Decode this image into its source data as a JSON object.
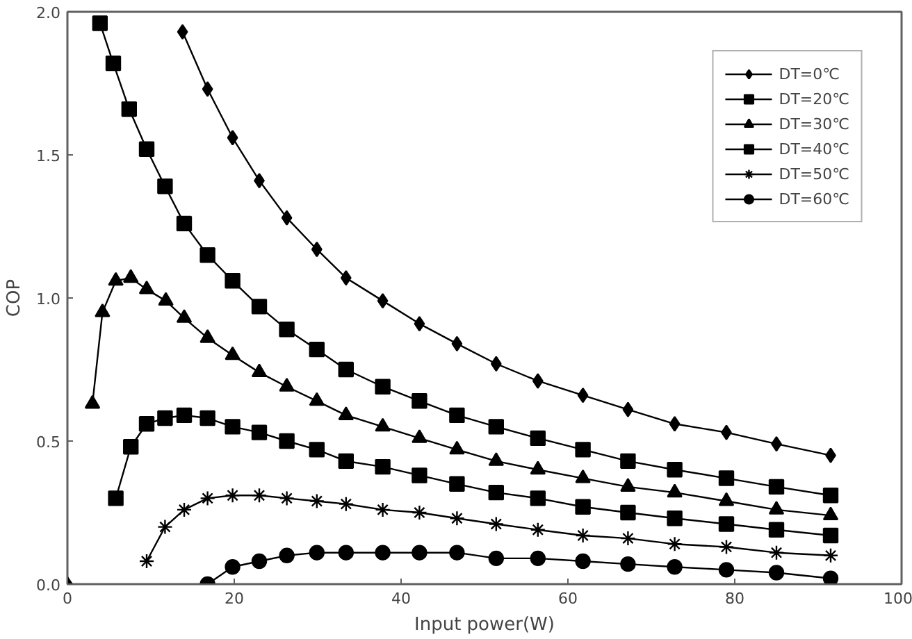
{
  "chart_data": {
    "type": "line",
    "xlabel": "Input power(W)",
    "ylabel": "COP",
    "xlim": [
      0,
      100
    ],
    "xticks": [
      0,
      20,
      40,
      60,
      80,
      100
    ],
    "ylim": [
      0,
      2
    ],
    "yticks": [
      {
        "value": 0,
        "label": "0.0"
      },
      {
        "value": 0.5,
        "label": "0.5"
      },
      {
        "value": 1,
        "label": "1.0"
      },
      {
        "value": 1.5,
        "label": "1.5"
      },
      {
        "value": 2,
        "label": "2.0"
      }
    ],
    "grid": false,
    "legend": "top right",
    "series": [
      {
        "name": "DT=0℃",
        "color": "#000000",
        "marker": "diamond",
        "x": [
          0,
          7,
          13.8,
          16.8,
          19.8,
          23,
          26.3,
          29.9,
          33.4,
          37.8,
          42.2,
          46.7,
          51.4,
          56.4,
          61.8,
          67.2,
          72.8,
          79,
          85,
          91.5
        ],
        "values": [
          0,
          null,
          1.93,
          1.73,
          1.56,
          1.41,
          1.28,
          1.17,
          1.07,
          0.99,
          0.91,
          0.84,
          0.77,
          0.71,
          0.66,
          0.61,
          0.56,
          0.53,
          0.49,
          0.45
        ]
      },
      {
        "name": "DT=20℃",
        "color": "#000000",
        "marker": "square",
        "x": [
          3.9,
          5.5,
          7.4,
          9.5,
          11.7,
          14,
          16.8,
          19.8,
          23,
          26.3,
          29.9,
          33.4,
          37.8,
          42.2,
          46.7,
          51.4,
          56.4,
          61.8,
          67.2,
          72.8,
          79,
          85,
          91.5
        ],
        "values": [
          1.96,
          1.82,
          1.66,
          1.52,
          1.39,
          1.26,
          1.15,
          1.06,
          0.97,
          0.89,
          0.82,
          0.75,
          0.69,
          0.64,
          0.59,
          0.55,
          0.51,
          0.47,
          0.43,
          0.4,
          0.37,
          0.34,
          0.31
        ]
      },
      {
        "name": "DT=30℃",
        "color": "#000000",
        "marker": "triangle",
        "x": [
          3,
          4.2,
          5.8,
          7.6,
          9.5,
          11.8,
          14,
          16.8,
          19.8,
          23,
          26.3,
          29.9,
          33.4,
          37.8,
          42.2,
          46.7,
          51.4,
          56.4,
          61.8,
          67.2,
          72.8,
          79,
          85,
          91.5
        ],
        "values": [
          0.63,
          0.95,
          1.06,
          1.07,
          1.03,
          0.99,
          0.93,
          0.86,
          0.8,
          0.74,
          0.69,
          0.64,
          0.59,
          0.55,
          0.51,
          0.47,
          0.43,
          0.4,
          0.37,
          0.34,
          0.32,
          0.29,
          0.26,
          0.24
        ]
      },
      {
        "name": "DT=40℃",
        "color": "#000000",
        "marker": "square",
        "x": [
          5.8,
          7.6,
          9.5,
          11.7,
          14,
          16.8,
          19.8,
          23,
          26.3,
          29.9,
          33.4,
          37.8,
          42.2,
          46.7,
          51.4,
          56.4,
          61.8,
          67.2,
          72.8,
          79,
          85,
          91.5
        ],
        "values": [
          0.3,
          0.48,
          0.56,
          0.58,
          0.59,
          0.58,
          0.55,
          0.53,
          0.5,
          0.47,
          0.43,
          0.41,
          0.38,
          0.35,
          0.32,
          0.3,
          0.27,
          0.25,
          0.23,
          0.21,
          0.19,
          0.17
        ]
      },
      {
        "name": "DT=50℃",
        "color": "#000000",
        "marker": "cross",
        "x": [
          9.5,
          11.7,
          14,
          16.8,
          19.8,
          23,
          26.3,
          29.9,
          33.4,
          37.8,
          42.2,
          46.7,
          51.4,
          56.4,
          61.8,
          67.2,
          72.8,
          79,
          85,
          91.5
        ],
        "values": [
          0.08,
          0.2,
          0.26,
          0.3,
          0.31,
          0.31,
          0.3,
          0.29,
          0.28,
          0.26,
          0.25,
          0.23,
          0.21,
          0.19,
          0.17,
          0.16,
          0.14,
          0.13,
          0.11,
          0.1
        ]
      },
      {
        "name": "DT=60℃",
        "color": "#000000",
        "marker": "circle",
        "x": [
          16.8,
          19.8,
          23,
          26.3,
          29.9,
          33.4,
          37.8,
          42.2,
          46.7,
          51.4,
          56.4,
          61.8,
          67.2,
          72.8,
          79,
          85,
          91.5
        ],
        "values": [
          0,
          0.06,
          0.08,
          0.1,
          0.11,
          0.11,
          0.11,
          0.11,
          0.11,
          0.09,
          0.09,
          0.08,
          0.07,
          0.06,
          0.05,
          0.04,
          0.02
        ]
      }
    ]
  }
}
